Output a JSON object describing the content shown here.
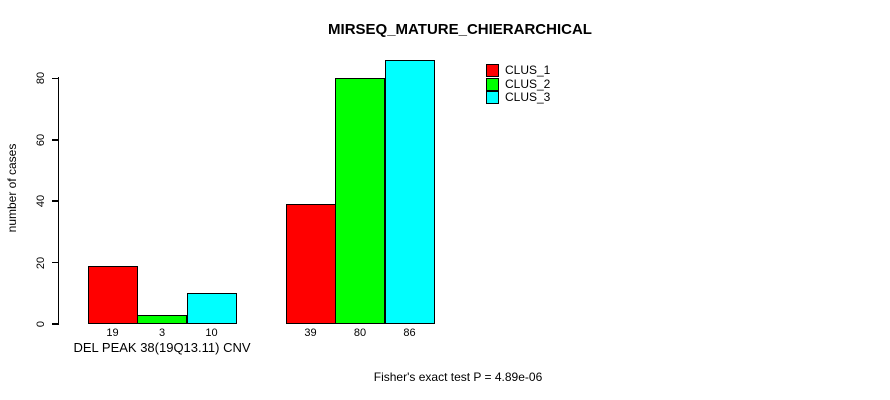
{
  "title": "MIRSEQ_MATURE_CHIERARCHICAL",
  "subtitle": "Fisher's exact test P = 4.89e-06",
  "colors": {
    "background": "#ffffff",
    "axis": "#000000",
    "clus_1": "#ff0000",
    "clus_2": "#00ff00",
    "clus_3": "#00ffff"
  },
  "chart_data": {
    "type": "bar",
    "title": "MIRSEQ_MATURE_CHIERARCHICAL",
    "xlabel": "",
    "ylabel": "number of cases",
    "ylim": [
      0,
      86
    ],
    "yticks": [
      0,
      20,
      40,
      60,
      80
    ],
    "grid": false,
    "group_labels": [
      "DEL PEAK 38(19Q13.11) CNV",
      ""
    ],
    "series": [
      {
        "name": "CLUS_1",
        "color": "#ff0000",
        "values": [
          19,
          39
        ]
      },
      {
        "name": "CLUS_2",
        "color": "#00ff00",
        "values": [
          3,
          80
        ]
      },
      {
        "name": "CLUS_3",
        "color": "#00ffff",
        "values": [
          10,
          86
        ]
      }
    ],
    "bar_value_labels": [
      [
        "19",
        "3",
        "10"
      ],
      [
        "39",
        "80",
        "86"
      ]
    ],
    "legend_entries": [
      "CLUS_1",
      "CLUS_2",
      "CLUS_3"
    ],
    "legend_position": "inside-top-right",
    "annotation": "Fisher's exact test P = 4.89e-06"
  }
}
